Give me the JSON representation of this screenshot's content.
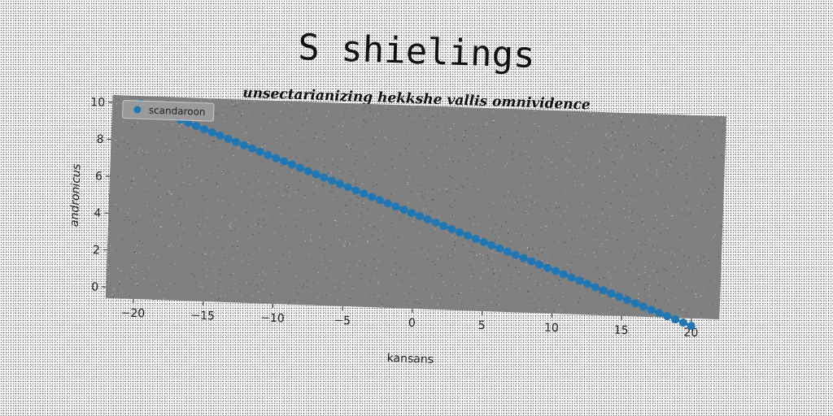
{
  "chart_data": {
    "type": "line",
    "title": "S shielings",
    "subtitle": "unsectarianizing hekkshe vallis omnividence",
    "xlabel": "kansans",
    "ylabel": "andronicus",
    "xlim": [
      -22,
      22
    ],
    "ylim": [
      -0.6,
      10.4
    ],
    "xticks": [
      -20,
      -15,
      -10,
      -5,
      0,
      5,
      10,
      15,
      20
    ],
    "yticks": [
      0,
      2,
      4,
      6,
      8,
      10
    ],
    "grid": false,
    "legend_position": "top-left",
    "series": [
      {
        "name": "scandaroon",
        "color": "#1f77b4",
        "marker": "circle",
        "x_start": -20,
        "x_end": 20,
        "y_start": 10,
        "y_end": -1,
        "n_points": 70
      }
    ]
  }
}
